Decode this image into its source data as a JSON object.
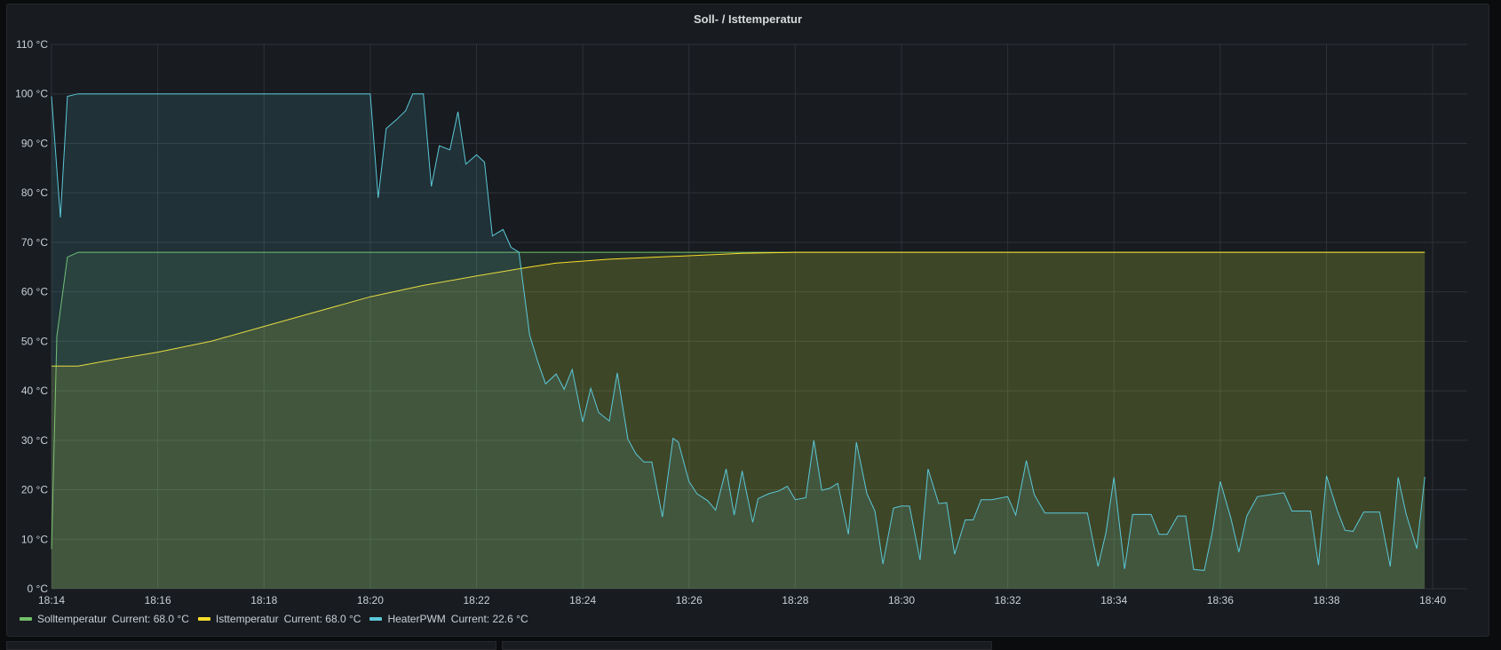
{
  "chart_data": {
    "type": "line",
    "title": "Soll- / Isttemperatur",
    "y_unit": "°C",
    "ylim": [
      0,
      110
    ],
    "y_ticks": [
      "0 °C",
      "10 °C",
      "20 °C",
      "30 °C",
      "40 °C",
      "50 °C",
      "60 °C",
      "70 °C",
      "80 °C",
      "90 °C",
      "100 °C",
      "110 °C"
    ],
    "x_ticks": [
      "18:14",
      "18:16",
      "18:18",
      "18:20",
      "18:22",
      "18:24",
      "18:26",
      "18:28",
      "18:30",
      "18:32",
      "18:34",
      "18:36",
      "18:38",
      "18:40"
    ],
    "xlim": [
      "18:14:00",
      "18:40:39"
    ],
    "grid": true,
    "legend_placement": "bottom-left",
    "series": [
      {
        "name": "Solltemperatur",
        "color": "#73bf69",
        "current": "Current: 68.0 °C",
        "fill": true,
        "points": [
          [
            "18:14:00",
            8
          ],
          [
            "18:14:06",
            51
          ],
          [
            "18:14:18",
            67
          ],
          [
            "18:14:30",
            68
          ],
          [
            "18:39:51",
            68
          ]
        ]
      },
      {
        "name": "Isttemperatur",
        "color": "#fade2a",
        "current": "Current: 68.0 °C",
        "fill": true,
        "points": [
          [
            "18:14:00",
            45
          ],
          [
            "18:14:30",
            45
          ],
          [
            "18:15:00",
            46
          ],
          [
            "18:16:00",
            47.8
          ],
          [
            "18:17:00",
            50
          ],
          [
            "18:18:00",
            53
          ],
          [
            "18:19:00",
            56
          ],
          [
            "18:20:00",
            59
          ],
          [
            "18:21:00",
            61.3
          ],
          [
            "18:22:00",
            63.2
          ],
          [
            "18:23:00",
            65
          ],
          [
            "18:23:30",
            65.8
          ],
          [
            "18:24:30",
            66.6
          ],
          [
            "18:26:00",
            67.3
          ],
          [
            "18:27:00",
            67.8
          ],
          [
            "18:28:00",
            68
          ],
          [
            "18:39:51",
            68
          ]
        ]
      },
      {
        "name": "HeaterPWM",
        "color": "#5ac8d8",
        "current": "Current: 22.6 °C",
        "fill": true,
        "points": [
          [
            "18:14:00",
            99.5
          ],
          [
            "18:14:10",
            75
          ],
          [
            "18:14:18",
            99.5
          ],
          [
            "18:14:30",
            100
          ],
          [
            "18:20:00",
            100
          ],
          [
            "18:20:09",
            79
          ],
          [
            "18:20:18",
            93
          ],
          [
            "18:20:29",
            94.7
          ],
          [
            "18:20:40",
            96.6
          ],
          [
            "18:20:48",
            100
          ],
          [
            "18:21:00",
            100
          ],
          [
            "18:21:09",
            81.3
          ],
          [
            "18:21:18",
            89.5
          ],
          [
            "18:21:30",
            88.7
          ],
          [
            "18:21:39",
            96.4
          ],
          [
            "18:21:48",
            85.8
          ],
          [
            "18:22:00",
            87.7
          ],
          [
            "18:22:09",
            86.2
          ],
          [
            "18:22:18",
            71.3
          ],
          [
            "18:22:30",
            72.6
          ],
          [
            "18:22:39",
            69
          ],
          [
            "18:22:48",
            68
          ],
          [
            "18:23:00",
            51.3
          ],
          [
            "18:23:09",
            46
          ],
          [
            "18:23:18",
            41.4
          ],
          [
            "18:23:30",
            43.4
          ],
          [
            "18:23:39",
            40.3
          ],
          [
            "18:23:48",
            44.3
          ],
          [
            "18:24:00",
            33.7
          ],
          [
            "18:24:09",
            40.5
          ],
          [
            "18:24:18",
            35.6
          ],
          [
            "18:24:30",
            33.9
          ],
          [
            "18:24:39",
            43.6
          ],
          [
            "18:24:51",
            30.2
          ],
          [
            "18:25:00",
            27.3
          ],
          [
            "18:25:09",
            25.6
          ],
          [
            "18:25:18",
            25.6
          ],
          [
            "18:25:30",
            14.5
          ],
          [
            "18:25:42",
            30.4
          ],
          [
            "18:25:48",
            29.6
          ],
          [
            "18:26:00",
            21.7
          ],
          [
            "18:26:09",
            19.2
          ],
          [
            "18:26:21",
            17.8
          ],
          [
            "18:26:30",
            15.9
          ],
          [
            "18:26:42",
            24.2
          ],
          [
            "18:26:51",
            14.9
          ],
          [
            "18:27:00",
            23.8
          ],
          [
            "18:27:12",
            13.4
          ],
          [
            "18:27:18",
            18.2
          ],
          [
            "18:27:30",
            19.2
          ],
          [
            "18:27:42",
            19.8
          ],
          [
            "18:27:51",
            20.7
          ],
          [
            "18:28:00",
            18
          ],
          [
            "18:28:12",
            18.4
          ],
          [
            "18:28:21",
            30
          ],
          [
            "18:28:30",
            19.9
          ],
          [
            "18:28:39",
            20.3
          ],
          [
            "18:28:48",
            21.3
          ],
          [
            "18:29:00",
            11
          ],
          [
            "18:29:09",
            29.6
          ],
          [
            "18:29:21",
            19.2
          ],
          [
            "18:29:30",
            15.7
          ],
          [
            "18:29:39",
            5
          ],
          [
            "18:29:51",
            16.3
          ],
          [
            "18:30:00",
            16.7
          ],
          [
            "18:30:09",
            16.7
          ],
          [
            "18:30:21",
            5.8
          ],
          [
            "18:30:30",
            24.2
          ],
          [
            "18:30:42",
            17.2
          ],
          [
            "18:30:51",
            17.4
          ],
          [
            "18:31:00",
            7
          ],
          [
            "18:31:12",
            13.9
          ],
          [
            "18:31:21",
            13.9
          ],
          [
            "18:31:30",
            18
          ],
          [
            "18:31:42",
            18
          ],
          [
            "18:32:00",
            18.6
          ],
          [
            "18:32:09",
            14.9
          ],
          [
            "18:32:21",
            25.9
          ],
          [
            "18:32:30",
            19
          ],
          [
            "18:32:42",
            15.3
          ],
          [
            "18:33:30",
            15.3
          ],
          [
            "18:33:42",
            4.5
          ],
          [
            "18:33:51",
            11.4
          ],
          [
            "18:34:00",
            22.5
          ],
          [
            "18:34:12",
            4
          ],
          [
            "18:34:21",
            15
          ],
          [
            "18:34:42",
            15
          ],
          [
            "18:34:51",
            11
          ],
          [
            "18:35:00",
            11
          ],
          [
            "18:35:12",
            14.7
          ],
          [
            "18:35:21",
            14.7
          ],
          [
            "18:35:30",
            3.9
          ],
          [
            "18:35:42",
            3.7
          ],
          [
            "18:35:51",
            11.4
          ],
          [
            "18:36:00",
            21.7
          ],
          [
            "18:36:12",
            14.3
          ],
          [
            "18:36:21",
            7.4
          ],
          [
            "18:36:30",
            14.7
          ],
          [
            "18:36:42",
            18.6
          ],
          [
            "18:37:12",
            19.4
          ],
          [
            "18:37:21",
            15.7
          ],
          [
            "18:37:42",
            15.7
          ],
          [
            "18:37:51",
            4.8
          ],
          [
            "18:38:00",
            22.8
          ],
          [
            "18:38:12",
            15.9
          ],
          [
            "18:38:21",
            11.8
          ],
          [
            "18:38:30",
            11.6
          ],
          [
            "18:38:42",
            15.5
          ],
          [
            "18:39:00",
            15.5
          ],
          [
            "18:39:12",
            4.5
          ],
          [
            "18:39:21",
            22.5
          ],
          [
            "18:39:30",
            15.1
          ],
          [
            "18:39:42",
            8.1
          ],
          [
            "18:39:51",
            22.6
          ]
        ]
      }
    ]
  }
}
